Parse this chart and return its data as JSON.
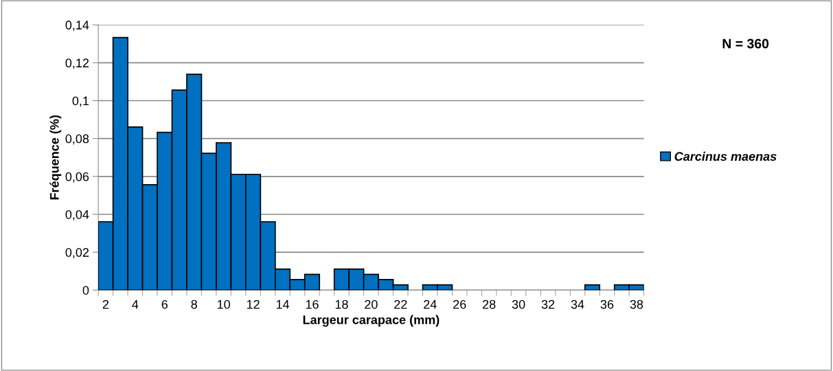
{
  "chart_data": {
    "type": "bar",
    "xlabel": "Largeur carapace (mm)",
    "ylabel": "Fréquence (%)",
    "categories": [
      "2",
      null,
      "4",
      null,
      "6",
      null,
      "8",
      null,
      "10",
      null,
      "12",
      null,
      "14",
      null,
      "16",
      null,
      "18",
      null,
      "20",
      null,
      "22",
      null,
      "24",
      null,
      "26",
      null,
      "28",
      null,
      "30",
      null,
      "32",
      null,
      "34",
      null,
      "36",
      null,
      "38"
    ],
    "series": [
      {
        "name": "Carcinus maenas",
        "color": "#0070c0",
        "values": [
          0.0361,
          0.1333,
          0.0861,
          0.0556,
          0.0833,
          0.1056,
          0.1139,
          0.0722,
          0.0778,
          0.0611,
          0.0611,
          0.0361,
          0.0111,
          0.0056,
          0.0083,
          0,
          0.0111,
          0.0111,
          0.0083,
          0.0056,
          0.0028,
          0,
          0.0028,
          0.0028,
          0,
          0,
          0,
          0,
          0,
          0,
          0,
          0,
          0,
          0.0028,
          0,
          0.0028,
          0.0028
        ]
      }
    ],
    "ylim": [
      0,
      0.14
    ],
    "yticks": [
      0,
      {
        "value": 0.02,
        "label": "0,02"
      },
      {
        "value": 0.04,
        "label": "0,04"
      },
      {
        "value": 0.06,
        "label": "0,06"
      },
      {
        "value": 0.08,
        "label": "0,08"
      },
      {
        "value": 0.1,
        "label": "0,1"
      },
      {
        "value": 0.12,
        "label": "0,12"
      },
      {
        "value": 0.14,
        "label": "0,14"
      }
    ],
    "grid": "y",
    "legend": "right",
    "annotations": [
      "N = 360"
    ]
  }
}
